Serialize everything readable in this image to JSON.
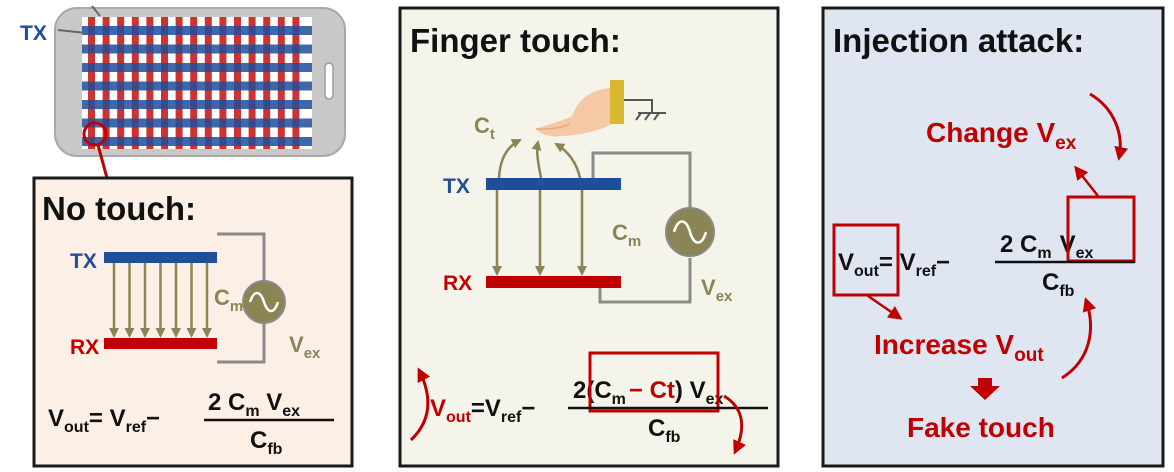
{
  "colors": {
    "tx_blue": "#1f4e9a",
    "rx_red": "#c00000",
    "olive": "#8b8455",
    "wire_gray": "#8a8a8a",
    "accent_red": "#c00000",
    "panel_left_bg": "#fcefe6",
    "panel_mid_bg": "#f5f4ea",
    "panel_right_bg": "#dfe6f2",
    "phone_body": "#c8c8c8",
    "finger_skin": "#f4c9a4",
    "finger_cuff": "#d8b830"
  },
  "phone": {
    "tx_label": "TX"
  },
  "no_touch": {
    "title": "No touch:",
    "tx_label": "TX",
    "rx_label": "RX",
    "cm_label": "C",
    "cm_sub": "m",
    "vex_label": "V",
    "vex_sub": "ex",
    "formula": {
      "vout": "V",
      "vout_sub": "out",
      "eq": "= V",
      "vref_sub": "ref",
      "minus": "−",
      "num": "2 C",
      "num_cm_sub": "m",
      "num_v": " V",
      "num_vex_sub": "ex",
      "den": "C",
      "den_sub": "fb"
    }
  },
  "finger_touch": {
    "title": "Finger touch:",
    "ct_label": "C",
    "ct_sub": "t",
    "tx_label": "TX",
    "rx_label": "RX",
    "cm_label": "C",
    "cm_sub": "m",
    "vex_label": "V",
    "vex_sub": "ex",
    "formula": {
      "vout": "V",
      "vout_sub": "out",
      "eq": "=V",
      "vref_sub": "ref",
      "minus": "−",
      "num_a": "2(C",
      "num_cm_sub": "m",
      "num_ct": "− Ct",
      "num_close": ")",
      "num_v": " V",
      "num_vex_sub": "ex",
      "den": "C",
      "den_sub": "fb"
    }
  },
  "injection": {
    "title": "Injection attack:",
    "change_label": "Change V",
    "change_sub": "ex",
    "increase_label": "Increase V",
    "increase_sub": "out",
    "fake_touch": "Fake touch",
    "formula": {
      "vout": "V",
      "vout_sub": "out",
      "eq": "= V",
      "vref_sub": "ref",
      "minus": "−",
      "num": "2 C",
      "num_cm_sub": "m",
      "num_v": "V",
      "num_vex_sub": "ex",
      "den": "C",
      "den_sub": "fb"
    }
  }
}
